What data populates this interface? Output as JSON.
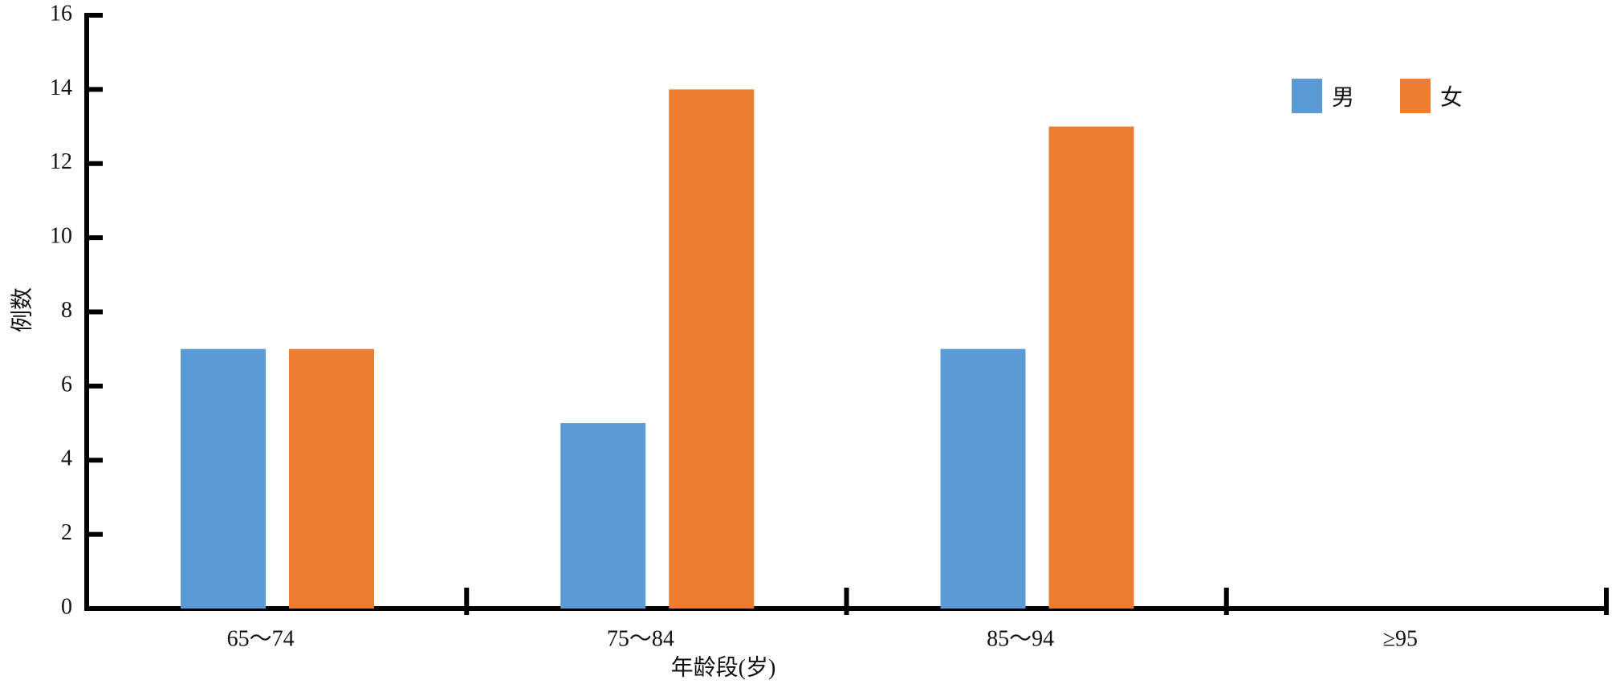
{
  "chart_data": {
    "type": "bar",
    "y_label": "例数",
    "x_label": "年龄段(岁)",
    "categories": [
      "65～74",
      "75～84",
      "85～94",
      "≥95"
    ],
    "series": [
      {
        "name": "男",
        "color": "#5b9bd5",
        "values": [
          7,
          5,
          7,
          0
        ]
      },
      {
        "name": "女",
        "color": "#ed7d31",
        "values": [
          7,
          14,
          13,
          0
        ]
      }
    ],
    "ylim": [
      0,
      16
    ],
    "yticks": [
      0,
      2,
      4,
      6,
      8,
      10,
      12,
      14,
      16
    ],
    "grid": false,
    "legend": "top-right"
  }
}
